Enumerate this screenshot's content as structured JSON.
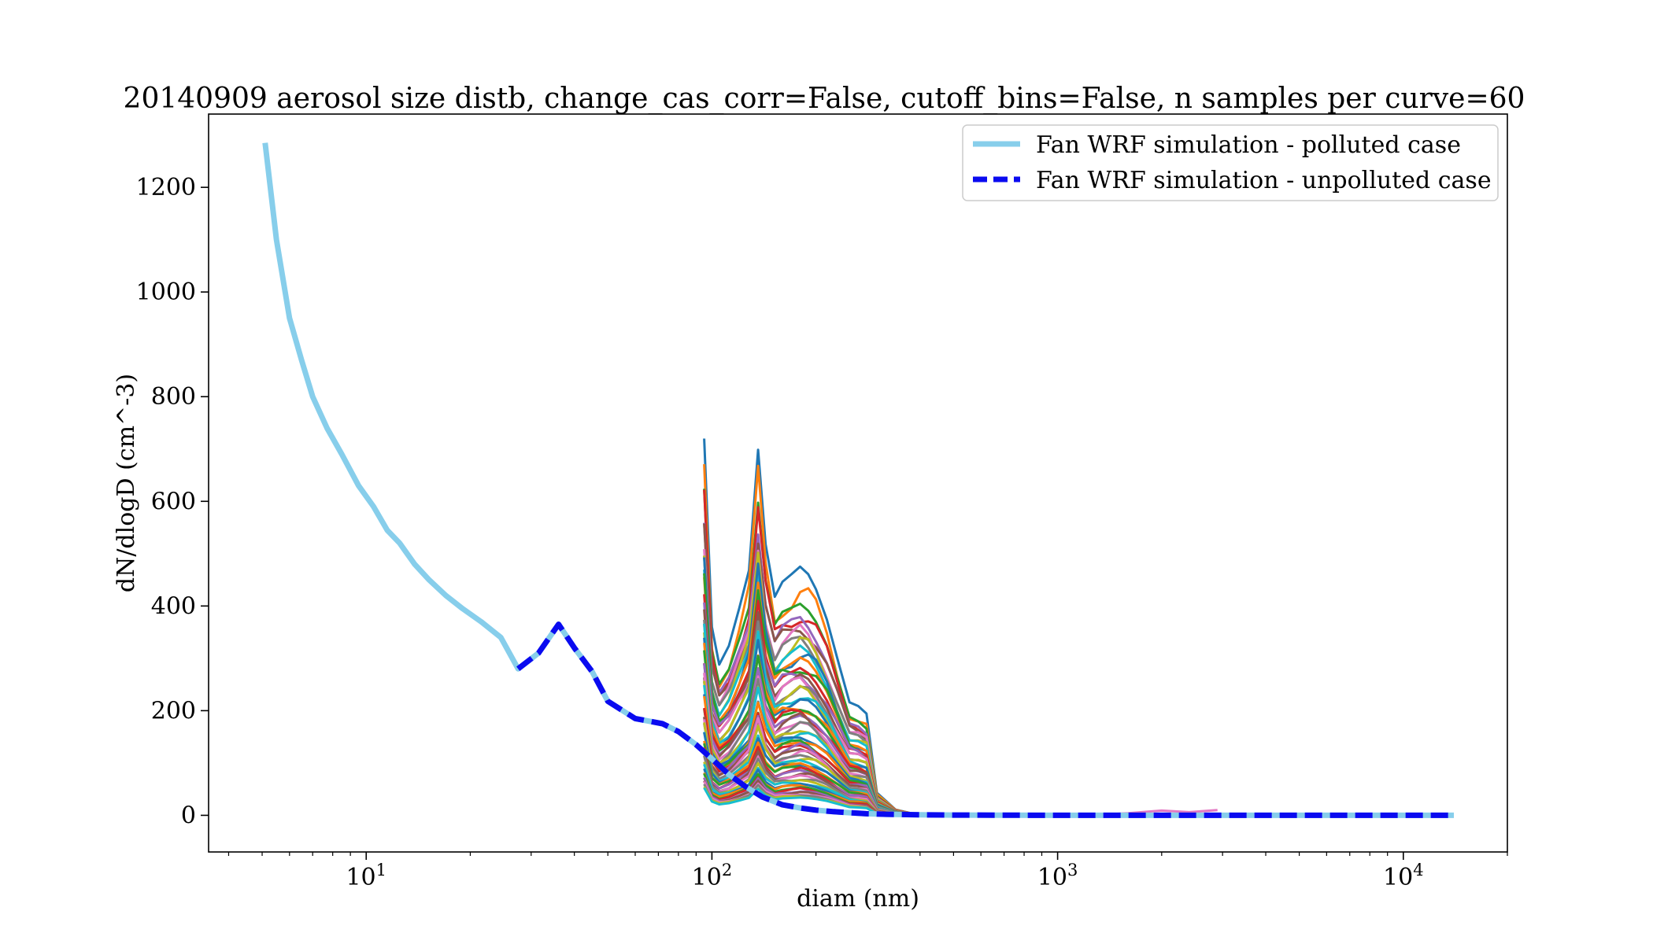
{
  "chart_data": {
    "type": "line",
    "title": "20140909 aerosol size distb, change_cas_corr=False, cutoff_bins=False, n samples per curve=60",
    "xlabel": "diam (nm)",
    "ylabel": "dN/dlogD (cm^-3)",
    "xscale": "log",
    "xlim": [
      3.5,
      20000
    ],
    "ylim": [
      -70,
      1340
    ],
    "grid": false,
    "legend_position": "top-right",
    "y_ticks": [
      0,
      200,
      400,
      600,
      800,
      1000,
      1200
    ],
    "x_ticks": [
      {
        "value": 10,
        "base": "10",
        "exp": "1"
      },
      {
        "value": 100,
        "base": "10",
        "exp": "2"
      },
      {
        "value": 1000,
        "base": "10",
        "exp": "3"
      },
      {
        "value": 10000,
        "base": "10",
        "exp": "4"
      }
    ],
    "series": [
      {
        "name": "Fan WRF simulation - polluted case",
        "color": "#87ceeb",
        "style": "solid",
        "x": [
          5.1,
          5.5,
          6.0,
          6.5,
          7.0,
          7.7,
          8.5,
          9.5,
          10.5,
          11.5,
          12.5,
          13.8,
          15.2,
          17.0,
          19.0,
          21.5,
          24.5,
          27.5,
          31.5,
          36.0,
          40.0,
          45.0,
          50.0,
          60.0,
          72.0,
          80.0,
          90.0,
          100.0,
          112.0,
          125.0,
          140.0,
          160.0,
          180.0,
          200.0,
          225.0,
          250.0,
          280.0,
          320.0,
          400.0,
          500.0,
          1000.0,
          2000.0,
          5000.0,
          10000.0,
          14000.0
        ],
        "y": [
          1285,
          1100,
          950,
          870,
          800,
          740,
          690,
          630,
          590,
          545,
          520,
          480,
          450,
          420,
          395,
          370,
          340,
          280,
          310,
          365,
          320,
          275,
          218,
          185,
          175,
          160,
          135,
          108,
          78,
          55,
          35,
          20,
          14,
          10,
          7,
          5,
          3,
          2,
          1,
          0.5,
          0,
          0,
          0,
          0,
          0
        ]
      },
      {
        "name": "Fan WRF simulation - unpolluted case",
        "color": "#0a0af0",
        "style": "dashed",
        "x": [
          27.5,
          31.5,
          36.0,
          40.0,
          45.0,
          50.0,
          60.0,
          72.0,
          80.0,
          90.0,
          100.0,
          112.0,
          125.0,
          140.0,
          160.0,
          180.0,
          200.0,
          225.0,
          250.0,
          280.0,
          320.0,
          400.0,
          500.0,
          1000.0,
          2000.0,
          5000.0,
          10000.0,
          14000.0
        ],
        "y": [
          280,
          310,
          365,
          320,
          275,
          218,
          185,
          175,
          160,
          135,
          108,
          78,
          55,
          35,
          20,
          14,
          10,
          7,
          5,
          3,
          2,
          1,
          0.5,
          0,
          0,
          0,
          0,
          0
        ]
      }
    ],
    "sample_curves": {
      "x": [
        95,
        100,
        105,
        112,
        120,
        128,
        136,
        143,
        152,
        160,
        170,
        180,
        190,
        200,
        215,
        230,
        250,
        265,
        280,
        300,
        340,
        400,
        450
      ],
      "profile": [
        1.0,
        0.5,
        0.4,
        0.45,
        0.55,
        0.65,
        0.97,
        0.72,
        0.58,
        0.62,
        0.64,
        0.66,
        0.64,
        0.6,
        0.52,
        0.42,
        0.3,
        0.29,
        0.27,
        0.06,
        0.015,
        0,
        0
      ],
      "peak_values": [
        720,
        650,
        620,
        590,
        570,
        550,
        530,
        510,
        500,
        480,
        470,
        455,
        440,
        425,
        410,
        400,
        385,
        370,
        360,
        350,
        335,
        320,
        310,
        300,
        290,
        280,
        270,
        260,
        250,
        240,
        230,
        220,
        212,
        205,
        197,
        190,
        182,
        175,
        168,
        160,
        153,
        147,
        140,
        133,
        127,
        120,
        114,
        108,
        102,
        96,
        90,
        85,
        80,
        75,
        70,
        66,
        62,
        58,
        55,
        52
      ],
      "colors": [
        "#1f77b4",
        "#ff7f0e",
        "#2ca02c",
        "#d62728",
        "#9467bd",
        "#8c564b",
        "#e377c2",
        "#7f7f7f",
        "#bcbd22",
        "#17becf"
      ],
      "tail": {
        "x": [
          1300,
          1600,
          2000,
          2400,
          2900
        ],
        "y": [
          1,
          4,
          9,
          6,
          10
        ],
        "color": "#e377c2"
      }
    }
  }
}
